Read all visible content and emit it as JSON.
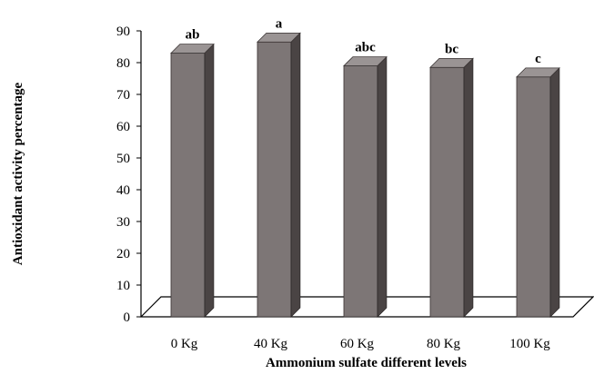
{
  "chart_data": {
    "type": "bar",
    "title": "",
    "xlabel": "Ammonium sulfate different levels",
    "ylabel": "Antioxidant activity percentage",
    "categories": [
      "0 Kg",
      "40 Kg",
      "60 Kg",
      "80 Kg",
      "100 Kg"
    ],
    "values": [
      83,
      86.5,
      79,
      78.5,
      75.5
    ],
    "significance_labels": [
      "ab",
      "a",
      "abc",
      "bc",
      "c"
    ],
    "ylim": [
      0,
      90
    ],
    "yticks": [
      0,
      10,
      20,
      30,
      40,
      50,
      60,
      70,
      80,
      90
    ],
    "grid": false,
    "legend": "none",
    "style": "3d-bar",
    "colors": {
      "bar_front": "#7d7676",
      "bar_side": "#4a4444",
      "bar_top": "#9a9494",
      "outline": "#000000"
    }
  }
}
